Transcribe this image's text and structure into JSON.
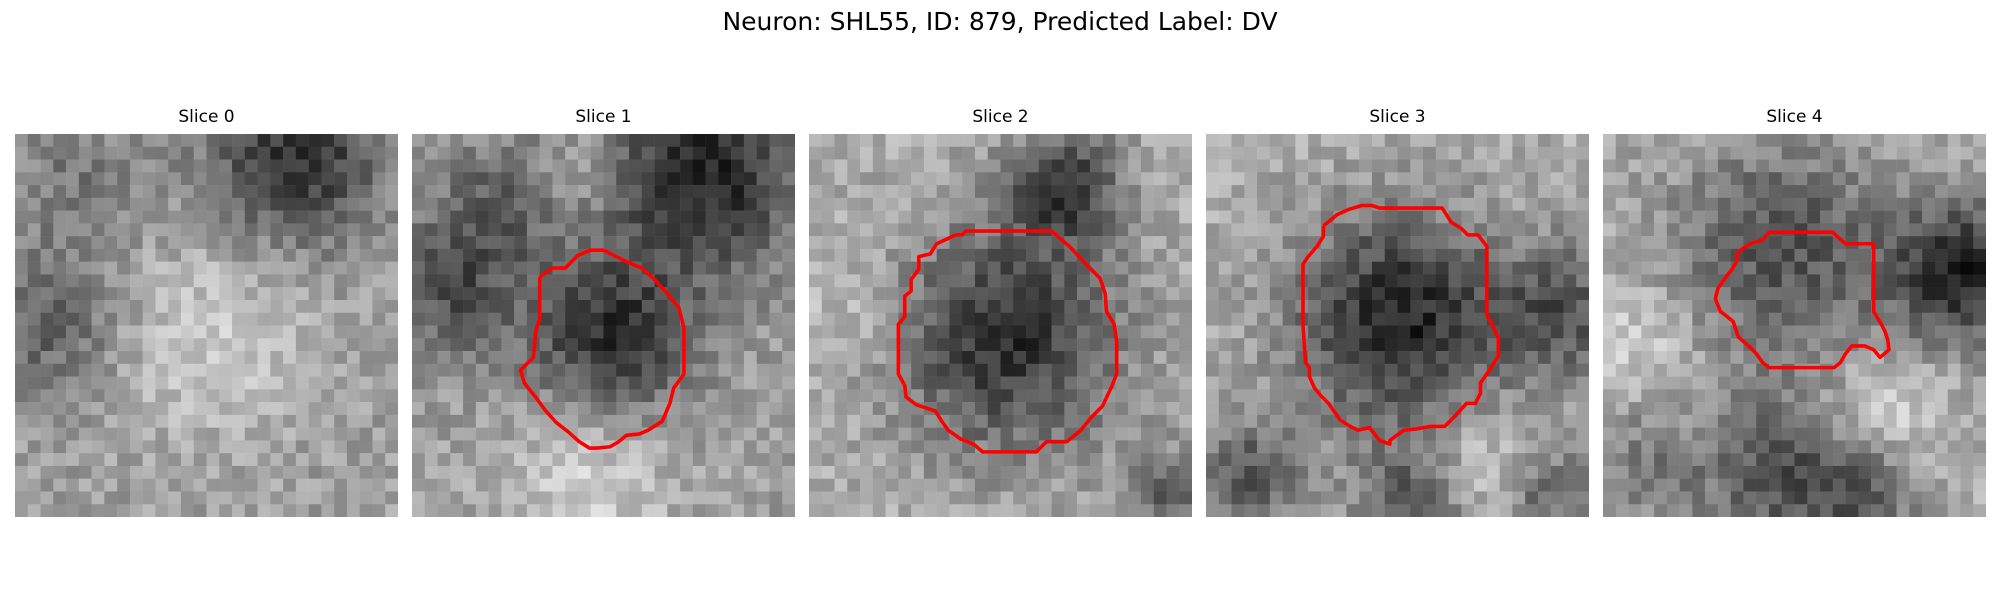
{
  "figure": {
    "title": "Neuron: SHL55, ID: 879, Predicted Label: DV"
  },
  "panels": [
    {
      "title": "Slice 0",
      "outline_color": "#ff0000",
      "has_outline": false
    },
    {
      "title": "Slice 1",
      "outline_color": "#ff0000",
      "has_outline": true
    },
    {
      "title": "Slice 2",
      "outline_color": "#ff0000",
      "has_outline": true
    },
    {
      "title": "Slice 3",
      "outline_color": "#ff0000",
      "has_outline": true
    },
    {
      "title": "Slice 4",
      "outline_color": "#ff0000",
      "has_outline": true
    }
  ]
}
